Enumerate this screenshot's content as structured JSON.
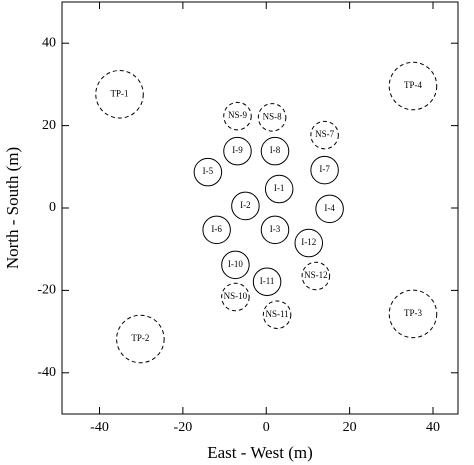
{
  "chart_data": {
    "type": "scatter",
    "x_label": "East - West (m)",
    "y_label": "North - South (m)",
    "xlim": [
      -49,
      46
    ],
    "ylim": [
      -50,
      50
    ],
    "xticks": [
      -40,
      -20,
      0,
      20,
      40
    ],
    "yticks": [
      -40,
      -20,
      0,
      20,
      40
    ],
    "color": "#000000",
    "points": [
      {
        "label": "TP-1",
        "x": -35.2,
        "y": 27.6,
        "r": 5.7,
        "style": "dashed"
      },
      {
        "label": "TP-2",
        "x": -30.2,
        "y": -31.8,
        "r": 5.7,
        "style": "dashed"
      },
      {
        "label": "TP-3",
        "x": 35.2,
        "y": -25.7,
        "r": 5.7,
        "style": "dashed"
      },
      {
        "label": "TP-4",
        "x": 35.2,
        "y": 29.6,
        "r": 5.7,
        "style": "dashed"
      },
      {
        "label": "NS-9",
        "x": -6.9,
        "y": 22.3,
        "r": 3.3,
        "style": "dashed"
      },
      {
        "label": "NS-8",
        "x": 1.4,
        "y": 22,
        "r": 3.3,
        "style": "dashed"
      },
      {
        "label": "NS-7",
        "x": 14,
        "y": 17.7,
        "r": 3.3,
        "style": "dashed"
      },
      {
        "label": "I-9",
        "x": -6.9,
        "y": 13.8,
        "r": 3.3,
        "style": "solid"
      },
      {
        "label": "I-8",
        "x": 2.1,
        "y": 13.8,
        "r": 3.3,
        "style": "solid"
      },
      {
        "label": "I-7",
        "x": 14,
        "y": 9.2,
        "r": 3.3,
        "style": "solid"
      },
      {
        "label": "I-5",
        "x": -14,
        "y": 8.7,
        "r": 3.3,
        "style": "solid"
      },
      {
        "label": "I-1",
        "x": 3.1,
        "y": 4.6,
        "r": 3.3,
        "style": "solid"
      },
      {
        "label": "I-2",
        "x": -5,
        "y": 0.5,
        "r": 3.3,
        "style": "solid"
      },
      {
        "label": "I-4",
        "x": 15.2,
        "y": -0.2,
        "r": 3.3,
        "style": "solid"
      },
      {
        "label": "I-6",
        "x": -11.9,
        "y": -5.3,
        "r": 3.3,
        "style": "solid"
      },
      {
        "label": "I-3",
        "x": 2.1,
        "y": -5.3,
        "r": 3.3,
        "style": "solid"
      },
      {
        "label": "I-12",
        "x": 10.2,
        "y": -8.5,
        "r": 3.3,
        "style": "solid"
      },
      {
        "label": "I-10",
        "x": -7.4,
        "y": -13.8,
        "r": 3.3,
        "style": "solid"
      },
      {
        "label": "I-11",
        "x": 0.2,
        "y": -17.9,
        "r": 3.3,
        "style": "solid"
      },
      {
        "label": "NS-12",
        "x": 11.9,
        "y": -16.5,
        "r": 3.3,
        "style": "dashed"
      },
      {
        "label": "NS-10",
        "x": -7.4,
        "y": -21.6,
        "r": 3.3,
        "style": "dashed"
      },
      {
        "label": "NS-11",
        "x": 2.6,
        "y": -25.9,
        "r": 3.3,
        "style": "dashed"
      }
    ]
  }
}
